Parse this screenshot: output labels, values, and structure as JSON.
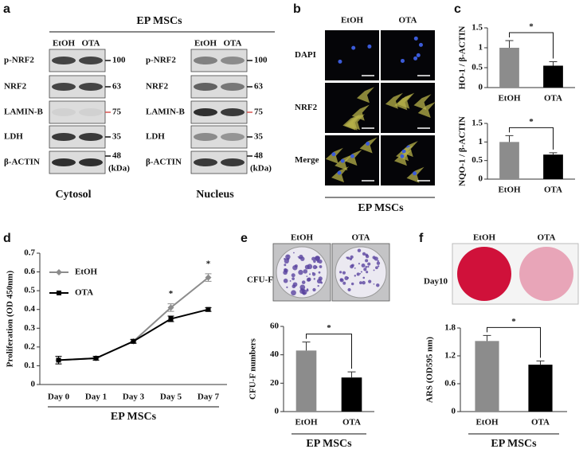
{
  "panel_labels": [
    "a",
    "b",
    "c",
    "d",
    "e",
    "f"
  ],
  "blot": {
    "title": "EP MSCs",
    "fractions": [
      {
        "name": "Cytosol",
        "lanes": [
          "EtOH",
          "OTA"
        ],
        "rows": [
          "p-NRF2",
          "NRF2",
          "LAMIN-B",
          "LDH",
          "β-ACTIN"
        ],
        "markers": [
          100,
          63,
          75,
          35,
          48
        ],
        "unit": "(kDa)"
      },
      {
        "name": "Nucleus",
        "lanes": [
          "EtOH",
          "OTA"
        ],
        "rows": [
          "p-NRF2",
          "NRF2",
          "LAMIN-B",
          "LDH",
          "β-ACTIN"
        ],
        "markers": [
          100,
          63,
          75,
          35,
          48
        ],
        "unit": "(kDa)"
      }
    ]
  },
  "imaging": {
    "columns": [
      "EtOH",
      "OTA"
    ],
    "rows": [
      "DAPI",
      "NRF2",
      "Merge"
    ],
    "label": "EP MSCs"
  },
  "cfu": {
    "columns": [
      "EtOH",
      "OTA"
    ],
    "row": "CFU-F"
  },
  "ars": {
    "columns": [
      "EtOH",
      "OTA"
    ],
    "row": "Day10"
  },
  "chart_data": [
    {
      "type": "bar",
      "ylabel": "HO-1 / β-ACTIN",
      "categories": [
        "EtOH",
        "OTA"
      ],
      "values": [
        1.0,
        0.55
      ],
      "errors": [
        0.18,
        0.1
      ],
      "colors": [
        "#8c8c8c",
        "#000000"
      ],
      "ylim": [
        0,
        1.5
      ],
      "yticks": [
        0,
        0.5,
        1,
        1.5
      ],
      "significance": "*"
    },
    {
      "type": "bar",
      "ylabel": "NQO-1 / β-ACTIN",
      "categories": [
        "EtOH",
        "OTA"
      ],
      "values": [
        1.0,
        0.66
      ],
      "errors": [
        0.17,
        0.05
      ],
      "colors": [
        "#8c8c8c",
        "#000000"
      ],
      "ylim": [
        0,
        1.5
      ],
      "yticks": [
        0,
        0.5,
        1,
        1.5
      ],
      "significance": "*"
    },
    {
      "type": "line",
      "ylabel": "Proliferation (OD 450nm)",
      "xlabel": "EP MSCs",
      "categories": [
        "Day 0",
        "Day 1",
        "Day 3",
        "Day 5",
        "Day 7"
      ],
      "series": [
        {
          "name": "EtOH",
          "color": "#8c8c8c",
          "marker": "diamond",
          "values": [
            0.13,
            0.14,
            0.23,
            0.41,
            0.57
          ],
          "errors": [
            0.02,
            0.01,
            0.01,
            0.02,
            0.02
          ]
        },
        {
          "name": "OTA",
          "color": "#000000",
          "marker": "square",
          "values": [
            0.13,
            0.14,
            0.23,
            0.35,
            0.4
          ],
          "errors": [
            0.02,
            0.01,
            0.01,
            0.015,
            0.01
          ]
        }
      ],
      "significance": [
        null,
        null,
        null,
        "*",
        "*"
      ],
      "ylim": [
        0,
        0.7
      ],
      "yticks": [
        0,
        0.1,
        0.2,
        0.3,
        0.4,
        0.5,
        0.6,
        0.7
      ]
    },
    {
      "type": "bar",
      "ylabel": "CFU-F numbers",
      "xlabel": "EP MSCs",
      "categories": [
        "EtOH",
        "OTA"
      ],
      "values": [
        43,
        24
      ],
      "errors": [
        6,
        4
      ],
      "colors": [
        "#8c8c8c",
        "#000000"
      ],
      "ylim": [
        0,
        60
      ],
      "yticks": [
        0,
        20,
        40,
        60
      ],
      "significance": "*"
    },
    {
      "type": "bar",
      "ylabel": "ARS (OD595 nm)",
      "xlabel": "EP MSCs",
      "categories": [
        "EtOH",
        "OTA"
      ],
      "values": [
        1.52,
        1.01
      ],
      "errors": [
        0.12,
        0.08
      ],
      "colors": [
        "#8c8c8c",
        "#000000"
      ],
      "ylim": [
        0,
        1.8
      ],
      "yticks": [
        0,
        0.6,
        1.2,
        1.8
      ],
      "significance": "*"
    }
  ]
}
